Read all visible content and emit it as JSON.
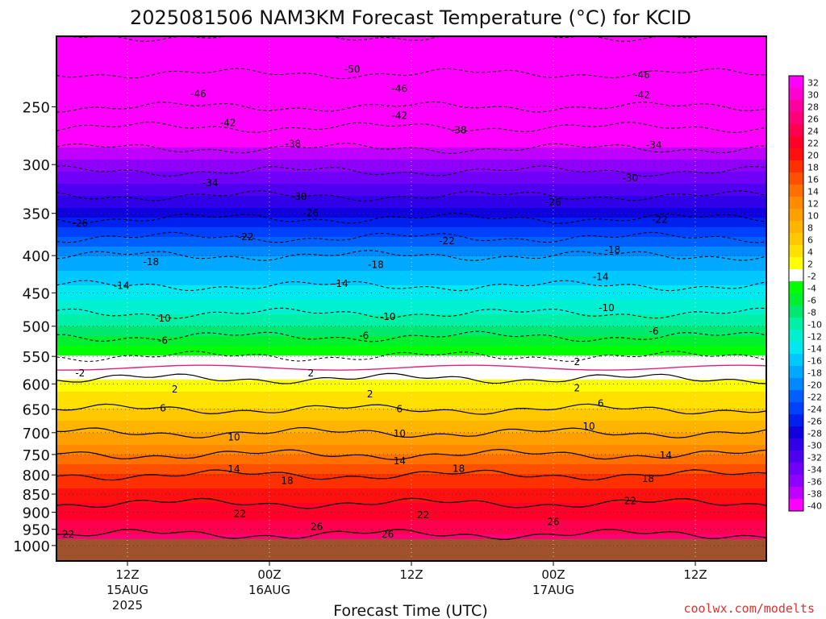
{
  "chart_data": {
    "type": "heatmap",
    "title": "2025081506 NAM3KM Forecast Temperature (°C) for KCID",
    "xlabel": "Forecast Time (UTC)",
    "ylabel": "",
    "credit": "coolwx.com/modelts",
    "run": "2025081506",
    "model": "NAM3KM",
    "station": "KCID",
    "x_range_hours": [
      0,
      60
    ],
    "y_scale": "log-pressure",
    "y_range_hpa": [
      1050,
      200
    ],
    "y_ticks": [
      250,
      300,
      350,
      400,
      450,
      500,
      550,
      600,
      650,
      700,
      750,
      800,
      850,
      900,
      950,
      1000
    ],
    "x_ticks": [
      {
        "hour": 6,
        "label": "12Z",
        "date": "15AUG",
        "year": "2025"
      },
      {
        "hour": 18,
        "label": "00Z",
        "date": "16AUG",
        "year": ""
      },
      {
        "hour": 30,
        "label": "12Z",
        "date": "",
        "year": ""
      },
      {
        "hour": 42,
        "label": "00Z",
        "date": "17AUG",
        "year": ""
      },
      {
        "hour": 54,
        "label": "12Z",
        "date": "",
        "year": ""
      }
    ],
    "grid": true,
    "surface_pressure_hpa": 980,
    "temperature_profile": [
      {
        "p": 200,
        "t": -54
      },
      {
        "p": 225,
        "t": -50
      },
      {
        "p": 250,
        "t": -46
      },
      {
        "p": 275,
        "t": -40
      },
      {
        "p": 300,
        "t": -35
      },
      {
        "p": 350,
        "t": -27
      },
      {
        "p": 400,
        "t": -18
      },
      {
        "p": 450,
        "t": -13
      },
      {
        "p": 500,
        "t": -8
      },
      {
        "p": 550,
        "t": -2
      },
      {
        "p": 600,
        "t": 3
      },
      {
        "p": 650,
        "t": 6
      },
      {
        "p": 700,
        "t": 10
      },
      {
        "p": 750,
        "t": 14
      },
      {
        "p": 800,
        "t": 18
      },
      {
        "p": 850,
        "t": 21
      },
      {
        "p": 900,
        "t": 23
      },
      {
        "p": 950,
        "t": 25
      },
      {
        "p": 980,
        "t": 27
      }
    ],
    "colorbar": {
      "levels": [
        32,
        30,
        28,
        26,
        24,
        22,
        20,
        18,
        16,
        14,
        12,
        10,
        8,
        6,
        4,
        2,
        -2,
        -4,
        -6,
        -8,
        -10,
        -12,
        -14,
        -16,
        -18,
        -20,
        -22,
        -24,
        -26,
        -28,
        -30,
        -32,
        -34,
        -36,
        -38,
        -40
      ],
      "colors": [
        "#ff00ff",
        "#ff00d0",
        "#ff00a0",
        "#ff0078",
        "#ff0050",
        "#ff0028",
        "#ff1010",
        "#ff3000",
        "#ff5000",
        "#ff7000",
        "#ff8c00",
        "#ffa000",
        "#ffb400",
        "#ffc800",
        "#ffe000",
        "#ffff00",
        "#ffffff",
        "#00ff00",
        "#00f030",
        "#00e870",
        "#00f0a8",
        "#00f0d0",
        "#00e8f0",
        "#00c8ff",
        "#00a8ff",
        "#0088ff",
        "#0060ff",
        "#0040ff",
        "#0020f0",
        "#1000e0",
        "#3000e8",
        "#5000f0",
        "#7000f8",
        "#9000ff",
        "#c000ff",
        "#ff00ff"
      ]
    },
    "contour_labels": [
      {
        "value": "-50",
        "hour": 25,
        "p": 222
      },
      {
        "value": "-46",
        "hour": 12,
        "p": 240
      },
      {
        "value": "-46",
        "hour": 29,
        "p": 236
      },
      {
        "value": "-46",
        "hour": 49.5,
        "p": 226
      },
      {
        "value": "-42",
        "hour": 14.5,
        "p": 263
      },
      {
        "value": "-42",
        "hour": 29,
        "p": 257
      },
      {
        "value": "-42",
        "hour": 49.5,
        "p": 241
      },
      {
        "value": "-38",
        "hour": 20,
        "p": 281
      },
      {
        "value": "-38",
        "hour": 34,
        "p": 269
      },
      {
        "value": "-34",
        "hour": 13,
        "p": 318
      },
      {
        "value": "-34",
        "hour": 50.5,
        "p": 282
      },
      {
        "value": "-30",
        "hour": 20.5,
        "p": 332
      },
      {
        "value": "-30",
        "hour": 48.5,
        "p": 313
      },
      {
        "value": "-26",
        "hour": 2,
        "p": 361
      },
      {
        "value": "-26",
        "hour": 21.5,
        "p": 350
      },
      {
        "value": "-26",
        "hour": 42,
        "p": 338
      },
      {
        "value": "-22",
        "hour": 16,
        "p": 377
      },
      {
        "value": "-22",
        "hour": 33,
        "p": 382
      },
      {
        "value": "-22",
        "hour": 51,
        "p": 357
      },
      {
        "value": "-18",
        "hour": 8,
        "p": 408
      },
      {
        "value": "-18",
        "hour": 27,
        "p": 412
      },
      {
        "value": "-18",
        "hour": 47,
        "p": 393
      },
      {
        "value": "-14",
        "hour": 5.5,
        "p": 440
      },
      {
        "value": "-14",
        "hour": 24,
        "p": 437
      },
      {
        "value": "-14",
        "hour": 46,
        "p": 428
      },
      {
        "value": "-10",
        "hour": 9,
        "p": 488
      },
      {
        "value": "-10",
        "hour": 28,
        "p": 485
      },
      {
        "value": "-10",
        "hour": 46.5,
        "p": 472
      },
      {
        "value": "-6",
        "hour": 9,
        "p": 523
      },
      {
        "value": "-6",
        "hour": 26,
        "p": 515
      },
      {
        "value": "-6",
        "hour": 50.5,
        "p": 508
      },
      {
        "value": "-2",
        "hour": 2,
        "p": 580
      },
      {
        "value": "2",
        "hour": 21.5,
        "p": 580
      },
      {
        "value": "2",
        "hour": 44,
        "p": 560
      },
      {
        "value": "2",
        "hour": 10,
        "p": 610
      },
      {
        "value": "2",
        "hour": 26.5,
        "p": 620
      },
      {
        "value": "2",
        "hour": 44,
        "p": 608
      },
      {
        "value": "6",
        "hour": 9,
        "p": 648
      },
      {
        "value": "6",
        "hour": 29,
        "p": 650
      },
      {
        "value": "6",
        "hour": 46,
        "p": 638
      },
      {
        "value": "10",
        "hour": 15,
        "p": 710
      },
      {
        "value": "10",
        "hour": 29,
        "p": 702
      },
      {
        "value": "10",
        "hour": 45,
        "p": 686
      },
      {
        "value": "14",
        "hour": 15,
        "p": 785
      },
      {
        "value": "14",
        "hour": 29,
        "p": 766
      },
      {
        "value": "14",
        "hour": 51.5,
        "p": 752
      },
      {
        "value": "18",
        "hour": 19.5,
        "p": 815
      },
      {
        "value": "18",
        "hour": 34,
        "p": 784
      },
      {
        "value": "18",
        "hour": 50,
        "p": 810
      },
      {
        "value": "22",
        "hour": 1,
        "p": 965
      },
      {
        "value": "22",
        "hour": 15.5,
        "p": 905
      },
      {
        "value": "22",
        "hour": 31,
        "p": 908
      },
      {
        "value": "22",
        "hour": 48.5,
        "p": 869
      },
      {
        "value": "26",
        "hour": 22,
        "p": 942
      },
      {
        "value": "26",
        "hour": 28,
        "p": 965
      },
      {
        "value": "26",
        "hour": 42,
        "p": 928
      }
    ]
  }
}
